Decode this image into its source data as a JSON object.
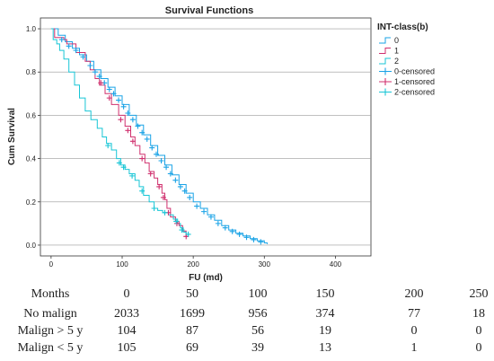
{
  "chart_data": {
    "type": "line",
    "title": "Survival Functions",
    "xlabel": "FU (md)",
    "ylabel": "Cum Survival",
    "xlim": [
      -15,
      450
    ],
    "ylim": [
      -0.05,
      1.05
    ],
    "x_ticks": [
      "0",
      "100",
      "200",
      "300",
      "400"
    ],
    "y_ticks": [
      "0.0",
      "0.2",
      "0.4",
      "0.6",
      "0.8",
      "1.0"
    ],
    "grid": "horizontal",
    "legend": {
      "title": "INT-class(b)",
      "placement": "right",
      "entries": [
        "0",
        "1",
        "2",
        "0-censored",
        "1-censored",
        "2-censored"
      ]
    },
    "series": [
      {
        "name": "0",
        "color": "#1aa3e6",
        "points": [
          [
            0,
            1.0
          ],
          [
            10,
            0.97
          ],
          [
            20,
            0.94
          ],
          [
            30,
            0.91
          ],
          [
            40,
            0.88
          ],
          [
            50,
            0.85
          ],
          [
            60,
            0.81
          ],
          [
            70,
            0.77
          ],
          [
            80,
            0.73
          ],
          [
            90,
            0.69
          ],
          [
            100,
            0.65
          ],
          [
            110,
            0.6
          ],
          [
            120,
            0.555
          ],
          [
            130,
            0.51
          ],
          [
            140,
            0.46
          ],
          [
            150,
            0.415
          ],
          [
            160,
            0.37
          ],
          [
            170,
            0.325
          ],
          [
            180,
            0.28
          ],
          [
            190,
            0.24
          ],
          [
            200,
            0.2
          ],
          [
            210,
            0.17
          ],
          [
            220,
            0.14
          ],
          [
            230,
            0.115
          ],
          [
            240,
            0.09
          ],
          [
            250,
            0.07
          ],
          [
            260,
            0.055
          ],
          [
            270,
            0.042
          ],
          [
            280,
            0.03
          ],
          [
            290,
            0.02
          ],
          [
            300,
            0.01
          ],
          [
            304,
            0.005
          ]
        ],
        "censored": [
          [
            15,
            0.95
          ],
          [
            25,
            0.92
          ],
          [
            35,
            0.9
          ],
          [
            45,
            0.87
          ],
          [
            55,
            0.83
          ],
          [
            62,
            0.8
          ],
          [
            68,
            0.78
          ],
          [
            75,
            0.75
          ],
          [
            82,
            0.72
          ],
          [
            88,
            0.7
          ],
          [
            95,
            0.67
          ],
          [
            102,
            0.64
          ],
          [
            108,
            0.61
          ],
          [
            115,
            0.58
          ],
          [
            122,
            0.55
          ],
          [
            128,
            0.52
          ],
          [
            135,
            0.49
          ],
          [
            142,
            0.45
          ],
          [
            148,
            0.42
          ],
          [
            155,
            0.39
          ],
          [
            162,
            0.36
          ],
          [
            168,
            0.33
          ],
          [
            175,
            0.3
          ],
          [
            182,
            0.27
          ],
          [
            188,
            0.25
          ],
          [
            195,
            0.22
          ],
          [
            205,
            0.18
          ],
          [
            215,
            0.155
          ],
          [
            225,
            0.13
          ],
          [
            235,
            0.1
          ],
          [
            245,
            0.08
          ],
          [
            255,
            0.063
          ],
          [
            265,
            0.05
          ],
          [
            275,
            0.036
          ],
          [
            285,
            0.025
          ],
          [
            295,
            0.015
          ]
        ]
      },
      {
        "name": "1",
        "color": "#d0306e",
        "points": [
          [
            0,
            1.0
          ],
          [
            5,
            0.96
          ],
          [
            18,
            0.95
          ],
          [
            22,
            0.93
          ],
          [
            35,
            0.89
          ],
          [
            48,
            0.85
          ],
          [
            55,
            0.81
          ],
          [
            62,
            0.77
          ],
          [
            68,
            0.74
          ],
          [
            76,
            0.7
          ],
          [
            85,
            0.65
          ],
          [
            95,
            0.6
          ],
          [
            104,
            0.55
          ],
          [
            112,
            0.5
          ],
          [
            118,
            0.46
          ],
          [
            125,
            0.42
          ],
          [
            132,
            0.38
          ],
          [
            138,
            0.34
          ],
          [
            145,
            0.31
          ],
          [
            150,
            0.28
          ],
          [
            156,
            0.24
          ],
          [
            160,
            0.21
          ],
          [
            163,
            0.17
          ],
          [
            168,
            0.13
          ],
          [
            175,
            0.11
          ],
          [
            180,
            0.09
          ],
          [
            185,
            0.065
          ],
          [
            190,
            0.04
          ],
          [
            192,
            0.04
          ]
        ],
        "censored": [
          [
            70,
            0.75
          ],
          [
            82,
            0.68
          ],
          [
            98,
            0.58
          ],
          [
            108,
            0.53
          ],
          [
            115,
            0.48
          ],
          [
            128,
            0.4
          ],
          [
            140,
            0.33
          ],
          [
            152,
            0.27
          ],
          [
            158,
            0.22
          ],
          [
            165,
            0.15
          ],
          [
            177,
            0.1
          ],
          [
            190,
            0.04
          ]
        ]
      },
      {
        "name": "2",
        "color": "#18c6d6",
        "points": [
          [
            0,
            1.0
          ],
          [
            3,
            0.95
          ],
          [
            8,
            0.93
          ],
          [
            12,
            0.9
          ],
          [
            18,
            0.86
          ],
          [
            25,
            0.8
          ],
          [
            33,
            0.74
          ],
          [
            40,
            0.68
          ],
          [
            48,
            0.62
          ],
          [
            56,
            0.58
          ],
          [
            65,
            0.54
          ],
          [
            72,
            0.5
          ],
          [
            78,
            0.47
          ],
          [
            85,
            0.44
          ],
          [
            92,
            0.4
          ],
          [
            98,
            0.37
          ],
          [
            104,
            0.35
          ],
          [
            110,
            0.33
          ],
          [
            118,
            0.3
          ],
          [
            124,
            0.27
          ],
          [
            130,
            0.23
          ],
          [
            138,
            0.2
          ],
          [
            145,
            0.17
          ],
          [
            150,
            0.16
          ],
          [
            157,
            0.15
          ],
          [
            165,
            0.14
          ],
          [
            172,
            0.12
          ],
          [
            178,
            0.1
          ],
          [
            182,
            0.08
          ],
          [
            186,
            0.06
          ],
          [
            190,
            0.05
          ],
          [
            194,
            0.05
          ]
        ],
        "censored": [
          [
            80,
            0.46
          ],
          [
            96,
            0.38
          ],
          [
            102,
            0.36
          ],
          [
            114,
            0.32
          ],
          [
            128,
            0.25
          ],
          [
            145,
            0.17
          ],
          [
            160,
            0.15
          ],
          [
            176,
            0.11
          ],
          [
            184,
            0.07
          ],
          [
            193,
            0.05
          ]
        ]
      }
    ]
  },
  "risk_table": {
    "header": "Months",
    "months": [
      "0",
      "50",
      "100",
      "150",
      "200",
      "250"
    ],
    "rows": [
      {
        "label": "No malign",
        "values": [
          "2033",
          "1699",
          "956",
          "374",
          "77",
          "18"
        ]
      },
      {
        "label": "Malign > 5 y",
        "values": [
          "104",
          "87",
          "56",
          "19",
          "0",
          "0"
        ]
      },
      {
        "label": "Malign < 5 y",
        "values": [
          "105",
          "69",
          "39",
          "13",
          "1",
          "0"
        ]
      }
    ]
  }
}
